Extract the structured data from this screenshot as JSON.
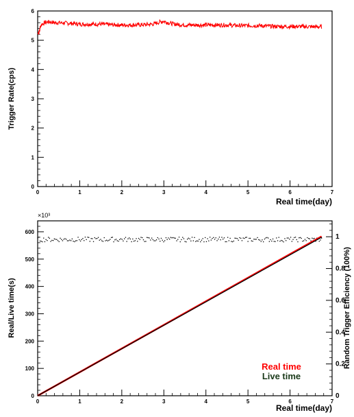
{
  "chart_data": [
    {
      "type": "line",
      "ylabel": "Trigger Rate(cps)",
      "xlabel": "Real time(day)",
      "xlim": [
        0,
        7
      ],
      "ylim": [
        0,
        6
      ],
      "x_ticks": [
        "0",
        "1",
        "2",
        "3",
        "4",
        "5",
        "6",
        "7"
      ],
      "y_ticks": [
        "0",
        "1",
        "2",
        "3",
        "4",
        "5",
        "6"
      ],
      "grid": false,
      "series": [
        {
          "color": "#ff0000",
          "x": [
            0,
            0.05,
            0.1,
            0.2,
            0.3,
            0.4,
            0.5,
            0.75,
            1.0,
            1.25,
            1.5,
            1.75,
            2.0,
            2.25,
            2.5,
            2.75,
            2.9,
            3.0,
            3.1,
            3.25,
            3.5,
            3.75,
            4.0,
            4.25,
            4.5,
            4.75,
            5.0,
            5.25,
            5.5,
            5.75,
            6.0,
            6.25,
            6.5,
            6.75
          ],
          "y": [
            5.3,
            5.45,
            5.55,
            5.62,
            5.63,
            5.6,
            5.6,
            5.58,
            5.55,
            5.55,
            5.55,
            5.53,
            5.52,
            5.52,
            5.53,
            5.55,
            5.62,
            5.65,
            5.6,
            5.55,
            5.52,
            5.52,
            5.52,
            5.52,
            5.52,
            5.5,
            5.5,
            5.5,
            5.48,
            5.47,
            5.47,
            5.47,
            5.46,
            5.46
          ]
        }
      ]
    },
    {
      "type": "scatter",
      "ylabel": "Real/Live time(s)",
      "y_multiplier": "×10³",
      "y2label": "Random Trigger Efficiency (100%)",
      "xlabel": "Real time(day)",
      "xlim": [
        0,
        7
      ],
      "ylim": [
        0,
        640
      ],
      "y2lim": [
        0,
        1.1
      ],
      "x_ticks": [
        "0",
        "1",
        "2",
        "3",
        "4",
        "5",
        "6",
        "7"
      ],
      "y_ticks": [
        "0",
        "100",
        "200",
        "300",
        "400",
        "500",
        "600"
      ],
      "y2_ticks": [
        "0",
        "0.2",
        "0.4",
        "0.6",
        "0.8",
        "1"
      ],
      "legend_position": "bottom-right",
      "series": [
        {
          "name": "Real time",
          "color": "#ff0000",
          "axis": "left",
          "style": "line",
          "x": [
            0,
            6.75
          ],
          "y": [
            0,
            583
          ]
        },
        {
          "name": "Live time",
          "color": "#000000",
          "axis": "left",
          "style": "line",
          "x": [
            0,
            6.75
          ],
          "y": [
            0,
            580
          ]
        },
        {
          "color": "#000000",
          "axis": "right",
          "style": "points",
          "x_range": [
            0,
            6.75
          ],
          "y_mean": 0.983,
          "y_spread": 0.015,
          "n_points": 240
        }
      ]
    }
  ]
}
